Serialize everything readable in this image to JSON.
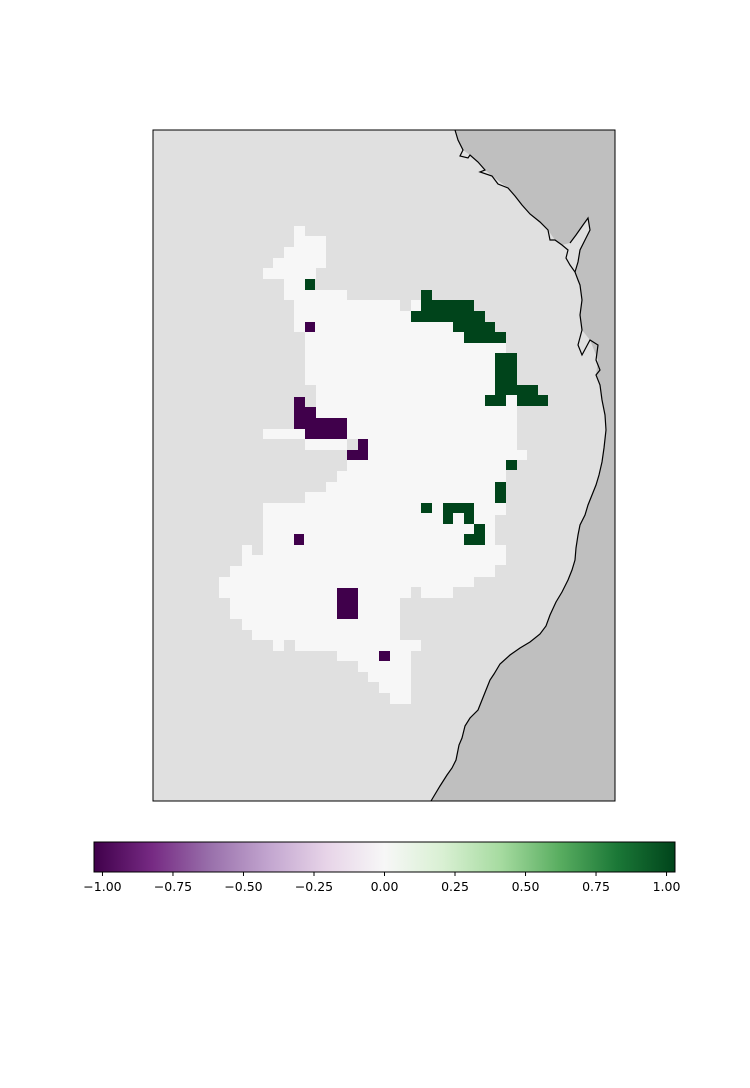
{
  "colormap": {
    "name": "PRGn",
    "stops": [
      "#40004b",
      "#762a83",
      "#9970ab",
      "#c2a5cf",
      "#e7d4e8",
      "#f7f7f7",
      "#d9f0d3",
      "#a6dba0",
      "#5aae61",
      "#1b7837",
      "#00441b"
    ],
    "vmin": -1.03,
    "vmax": 1.03
  },
  "colorbar": {
    "ticks": [
      -1.0,
      -0.75,
      -0.5,
      -0.25,
      0.0,
      0.25,
      0.5,
      0.75,
      1.0
    ],
    "tick_labels": [
      "−1.00",
      "−0.75",
      "−0.50",
      "−0.25",
      "0.00",
      "0.25",
      "0.50",
      "0.75",
      "1.00"
    ]
  },
  "colors": {
    "land_background": "#e0e0e0",
    "ocean": "#bfbfbf",
    "coastline": "#000000",
    "valid_region": "#f7f7f7",
    "negative_cells": "#40004b",
    "positive_cells": "#00441b"
  },
  "regions": {
    "negative_cell_value": -1.0,
    "positive_cell_value": 1.0,
    "background_cell_value": 0.0
  }
}
